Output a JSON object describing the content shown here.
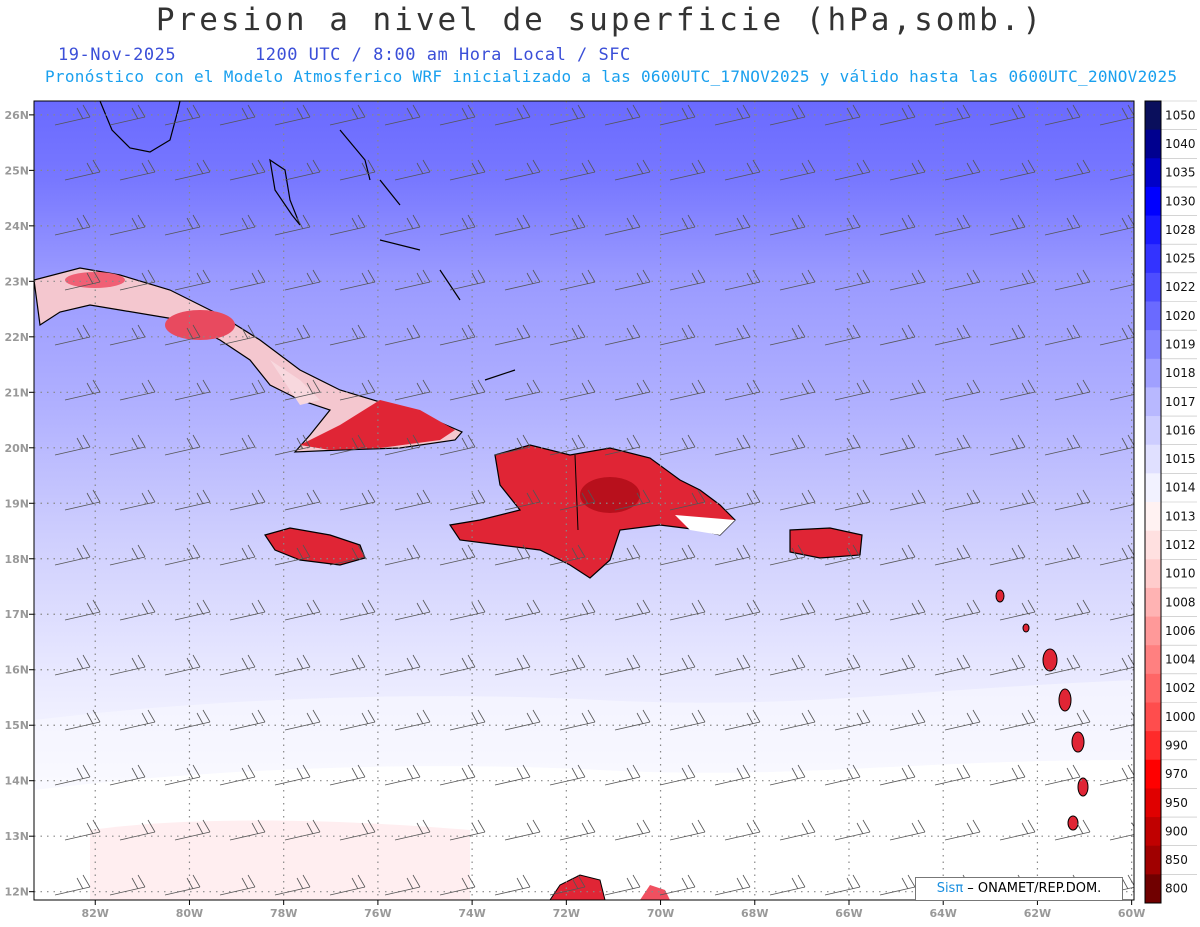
{
  "title": "Presion a nivel de superficie (hPa,somb.)",
  "date": "19-Nov-2025",
  "time_info": "1200 UTC / 8:00 am Hora Local / SFC",
  "model_info": "Pronóstico con el Modelo Atmosferico WRF inicializado a las 0600UTC_17NOV2025 y válido hasta las  0600UTC_20NOV2025",
  "lat_labels": [
    "26N",
    "25N",
    "24N",
    "23N",
    "22N",
    "21N",
    "20N",
    "19N",
    "18N",
    "17N",
    "16N",
    "15N",
    "14N",
    "13N",
    "12N"
  ],
  "lon_labels": [
    "82W",
    "80W",
    "78W",
    "76W",
    "74W",
    "72W",
    "70W",
    "68W",
    "66W",
    "64W",
    "62W",
    "60W"
  ],
  "colorbar": {
    "levels": [
      "1050",
      "1040",
      "1035",
      "1030",
      "1028",
      "1025",
      "1022",
      "1020",
      "1019",
      "1018",
      "1017",
      "1016",
      "1015",
      "1014",
      "1013",
      "1012",
      "1010",
      "1008",
      "1006",
      "1004",
      "1002",
      "1000",
      "990",
      "970",
      "950",
      "900",
      "850",
      "800"
    ],
    "colors": [
      "#0a0f5c",
      "#00008f",
      "#0000c8",
      "#0000ff",
      "#1a1aff",
      "#3333ff",
      "#4d4dff",
      "#6a6aff",
      "#8585ff",
      "#a0a0ff",
      "#b8b8ff",
      "#cdcdff",
      "#e0e0ff",
      "#f2f2ff",
      "#fff2f2",
      "#ffe0e0",
      "#ffcccc",
      "#ffb3b3",
      "#ff9999",
      "#ff8080",
      "#ff6666",
      "#ff4d4d",
      "#ff2a2a",
      "#ff0000",
      "#e00000",
      "#c00000",
      "#a00000",
      "#700000"
    ]
  },
  "credit": {
    "brand": "Sisπ",
    "text": " – ONAMET/REP.DOM."
  }
}
